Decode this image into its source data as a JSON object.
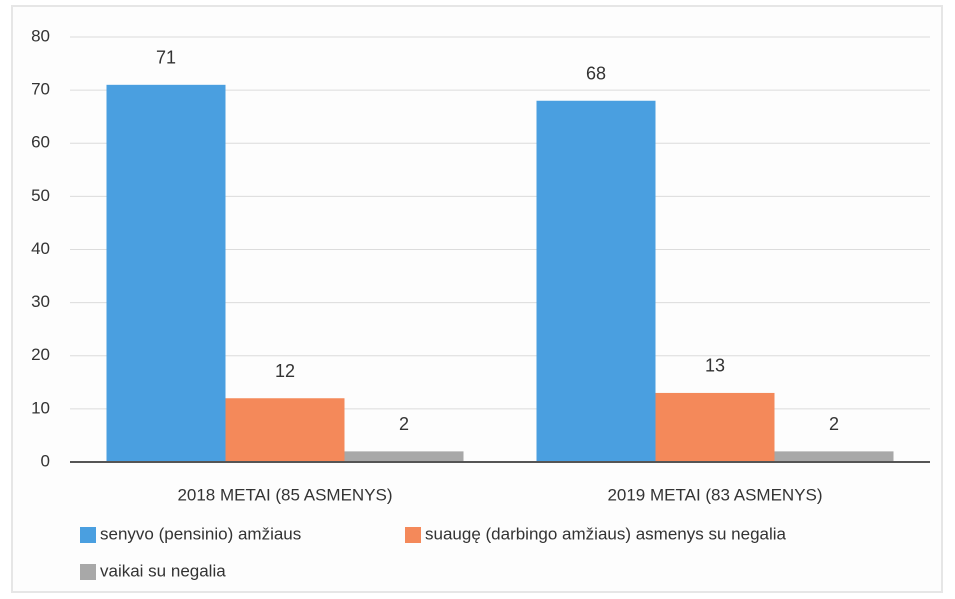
{
  "chart_data": {
    "type": "bar",
    "categories": [
      "2018 METAI (85 ASMENYS)",
      "2019 METAI (83 ASMENYS)"
    ],
    "series": [
      {
        "name": "senyvo (pensinio) amžiaus",
        "color": "#4a9fe0",
        "values": [
          71,
          68
        ]
      },
      {
        "name": "suaugę (darbingo amžiaus) asmenys su negalia",
        "color": "#f4895a",
        "values": [
          12,
          13
        ]
      },
      {
        "name": "vaikai su negalia",
        "color": "#a8a8a8",
        "values": [
          2,
          2
        ]
      }
    ],
    "ylim": [
      0,
      80
    ],
    "yticks": [
      0,
      10,
      20,
      30,
      40,
      50,
      60,
      70,
      80
    ],
    "grid": true,
    "legend": "bottom"
  }
}
